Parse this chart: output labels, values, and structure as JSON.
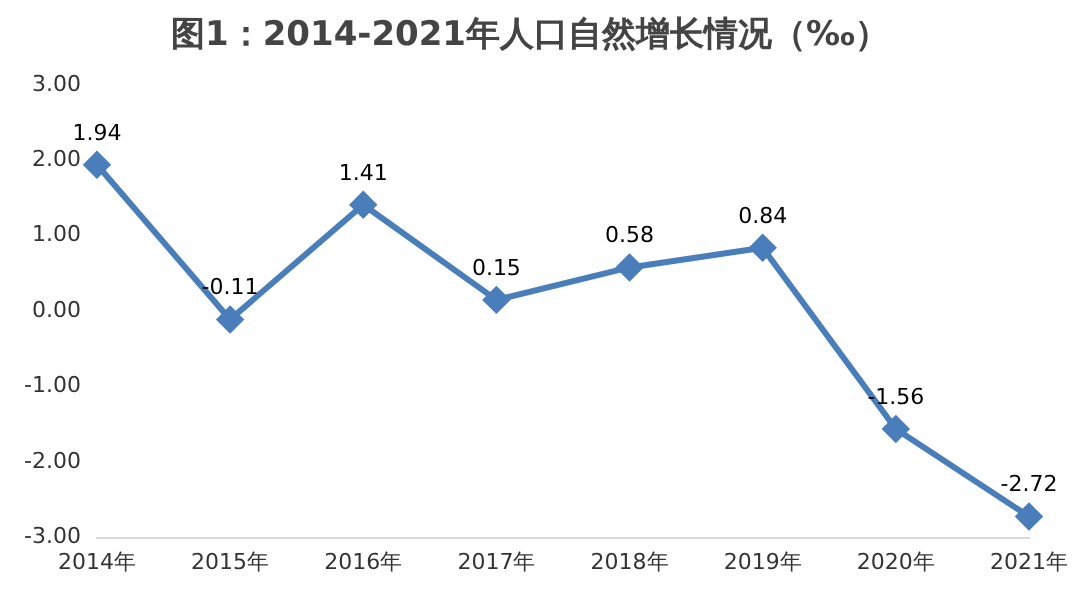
{
  "chart_data": {
    "type": "line",
    "title": "图1：2014-2021年人口自然增长情况（‰）",
    "categories": [
      "2014年",
      "2015年",
      "2016年",
      "2017年",
      "2018年",
      "2019年",
      "2020年",
      "2021年"
    ],
    "series": [
      {
        "color": "#4a7ebb",
        "values": [
          1.94,
          -0.11,
          1.41,
          0.15,
          0.58,
          0.84,
          -1.56,
          -2.72
        ]
      }
    ],
    "ylim": [
      -3,
      3
    ],
    "yticks": [
      {
        "value": -3,
        "label": "-3.00"
      },
      {
        "value": -2,
        "label": "-2.00"
      },
      {
        "value": -1,
        "label": "-1.00"
      },
      {
        "value": 0,
        "label": "0.00"
      },
      {
        "value": 1,
        "label": "1.00"
      },
      {
        "value": 2,
        "label": "2.00"
      },
      {
        "value": 3,
        "label": "3.00"
      }
    ],
    "grid": false,
    "legend": false,
    "marker": "diamond",
    "line_style": "solid",
    "data_labels": true
  }
}
